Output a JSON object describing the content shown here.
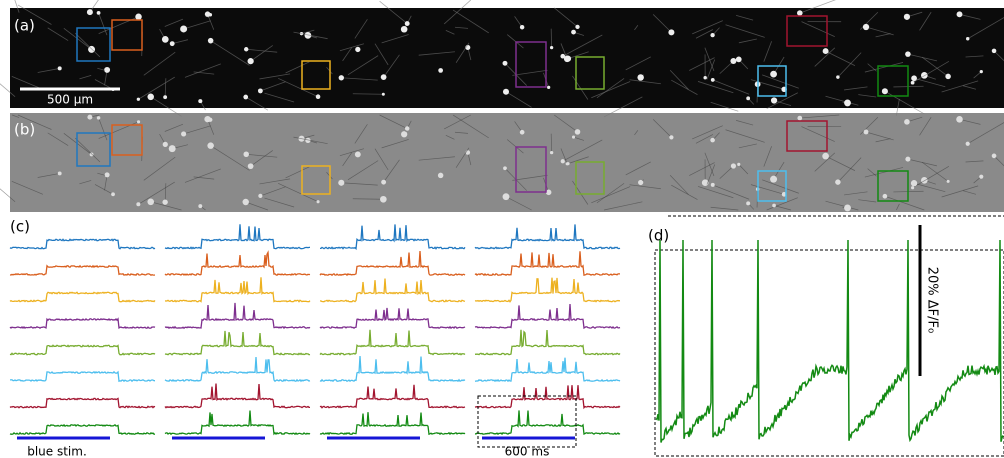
{
  "panels": {
    "a": {
      "label": "(a)",
      "scale_label": "500 µm"
    },
    "b": {
      "label": "(b)"
    },
    "c": {
      "label": "(c)",
      "stim_label": "blue stim.",
      "time_label": "600 ms"
    },
    "d": {
      "label": "(d)",
      "scale_label": "20% ΔF/F₀"
    }
  },
  "cell_colors": [
    "#1f77c0",
    "#d95f1e",
    "#edb120",
    "#7e2f8e",
    "#77ac30",
    "#4dbeee",
    "#a2142f",
    "#138a13"
  ],
  "stim_color": "#1515d6"
}
